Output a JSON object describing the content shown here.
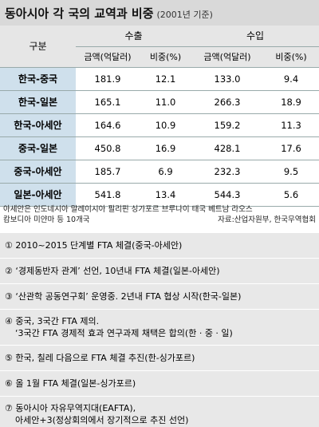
{
  "header": {
    "title": "동아시아 각 국의 교역과 비중",
    "subtitle": "(2001년 기준)"
  },
  "table": {
    "corner": "구분",
    "groups": [
      "수출",
      "수입"
    ],
    "columns": [
      "금액(억달러)",
      "비중(%)",
      "금액(억달러)",
      "비중(%)"
    ],
    "rows": [
      [
        "한국-중국",
        "181.9",
        "12.1",
        "133.0",
        "9.4"
      ],
      [
        "한국-일본",
        "165.1",
        "11.0",
        "266.3",
        "18.9"
      ],
      [
        "한국-아세안",
        "164.6",
        "10.9",
        "159.2",
        "11.3"
      ],
      [
        "중국-일본",
        "450.8",
        "16.9",
        "428.1",
        "17.6"
      ],
      [
        "중국-아세안",
        "185.7",
        "6.9",
        "232.3",
        "9.5"
      ],
      [
        "일본-아세안",
        "541.8",
        "13.4",
        "544.3",
        "5.6"
      ]
    ]
  },
  "notes": {
    "lines": [
      "아세안은 인도네시아 말레이시아 필리핀 싱가포르 브루나이 태국 베트남 라오스",
      "캄보디아 미얀마 등 10개국"
    ],
    "source": "자료:산업자원부, 한국무역협회"
  },
  "items": [
    [
      "① 2010~2015 단계별 FTA 체결(중국-아세안)"
    ],
    [
      "② ‘경제동반자 관계’ 선언, 10년내 FTA 체결(일본-아세안)"
    ],
    [
      "③ ‘산관학 공동연구회’ 운영중. 2년내 FTA 협상 시작(한국-일본)"
    ],
    [
      "④ 중국, 3국간 FTA 제의.",
      "‘3국간 FTA 경제적 효과 연구과제 채택은 합의(한 · 중 · 일)"
    ],
    [
      "⑤ 한국, 칠레 다음으로 FTA 체결 추진(한-싱가포르)"
    ],
    [
      "⑥ 올 1월 FTA 체결(일본-싱가포르)"
    ],
    [
      "⑦ 동아시아 자유무역지대(EAFTA),",
      "아세안+3(정상회의에서 장기적으로 추진 선언)"
    ]
  ]
}
